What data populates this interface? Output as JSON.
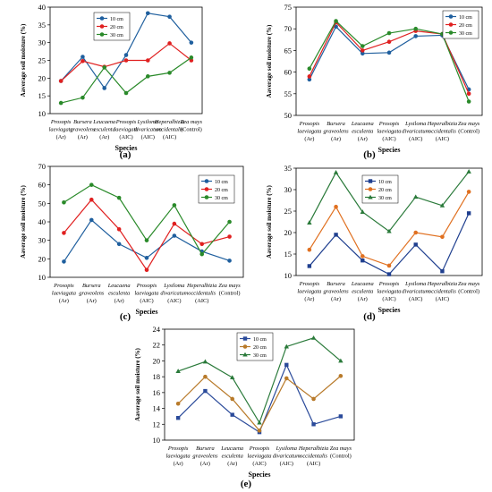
{
  "species": [
    [
      "Prosopis",
      "laeviagata",
      "(Ar)"
    ],
    [
      "Bursera",
      "graveolens",
      "(Ar)"
    ],
    [
      "Leucaena",
      "esculenta",
      "(Ar)"
    ],
    [
      "Prosopis",
      "laeviagata",
      "(AIC)"
    ],
    [
      "Lysiloma",
      "divaricatum",
      "(AIC)"
    ],
    [
      "Heperalbizia",
      "occidentalis",
      "(AIC)"
    ],
    [
      "Zea mays",
      "(Control)"
    ]
  ],
  "chart_data": [
    {
      "type": "line",
      "panel_label": "(a)",
      "xlabel": "Species",
      "ylabel": "Aaverage soil moisture (%)",
      "ylim": [
        10,
        40
      ],
      "yticks": [
        10,
        15,
        20,
        25,
        30,
        35,
        40
      ],
      "legend_position": "top-center",
      "series": [
        {
          "name": "10 cm",
          "color": "#1f5f9e",
          "marker": "circle",
          "values": [
            19.2,
            26.0,
            17.2,
            26.5,
            38.3,
            37.3,
            30.0
          ]
        },
        {
          "name": "20 cm",
          "color": "#e02020",
          "marker": "circle",
          "values": [
            19.2,
            24.8,
            23.2,
            25.0,
            25.0,
            29.8,
            25.0
          ]
        },
        {
          "name": "30 cm",
          "color": "#2a8a2a",
          "marker": "circle",
          "values": [
            13.0,
            14.5,
            23.0,
            15.8,
            20.5,
            21.5,
            25.8
          ]
        }
      ]
    },
    {
      "type": "line",
      "panel_label": "(b)",
      "xlabel": "Species",
      "ylabel": "Aaverage soil moisture (%)",
      "ylim": [
        50,
        75
      ],
      "yticks": [
        50,
        55,
        60,
        65,
        70,
        75
      ],
      "legend_position": "top-right",
      "series": [
        {
          "name": "10 cm",
          "color": "#1f5f9e",
          "marker": "circle",
          "values": [
            58.3,
            70.5,
            64.3,
            64.5,
            68.3,
            68.5,
            56.0
          ]
        },
        {
          "name": "20 cm",
          "color": "#e02020",
          "marker": "circle",
          "values": [
            59.0,
            71.5,
            65.0,
            67.0,
            69.5,
            68.8,
            55.0
          ]
        },
        {
          "name": "30 cm",
          "color": "#2a8a2a",
          "marker": "circle",
          "values": [
            60.8,
            71.8,
            66.0,
            69.0,
            70.0,
            68.8,
            53.2
          ]
        }
      ]
    },
    {
      "type": "line",
      "panel_label": "(c)",
      "xlabel": "Species",
      "ylabel": "Aaverage soil moisture (%)",
      "ylim": [
        10,
        70
      ],
      "yticks": [
        10,
        20,
        30,
        40,
        50,
        60,
        70
      ],
      "legend_position": "top-right",
      "series": [
        {
          "name": "10 cm",
          "color": "#1f5f9e",
          "marker": "circle",
          "values": [
            18.5,
            41.0,
            28.0,
            20.5,
            32.5,
            24.0,
            19.0
          ]
        },
        {
          "name": "20 cm",
          "color": "#e02020",
          "marker": "circle",
          "values": [
            34.0,
            52.0,
            36.0,
            14.0,
            39.0,
            28.0,
            32.0
          ]
        },
        {
          "name": "30 cm",
          "color": "#2a8a2a",
          "marker": "circle",
          "values": [
            50.5,
            60.0,
            53.0,
            30.0,
            49.0,
            22.5,
            40.0
          ]
        }
      ]
    },
    {
      "type": "line",
      "panel_label": "(d)",
      "xlabel": "Species",
      "ylabel": "Aaverage soil moisture (%)",
      "ylim": [
        10,
        35
      ],
      "yticks": [
        10,
        15,
        20,
        25,
        30,
        35
      ],
      "legend_position": "top-left",
      "series": [
        {
          "name": "10 cm",
          "color": "#1f3f8f",
          "marker": "square",
          "values": [
            12.2,
            19.5,
            13.5,
            10.3,
            17.2,
            11.0,
            24.5
          ]
        },
        {
          "name": "20 cm",
          "color": "#e07020",
          "marker": "circle",
          "values": [
            16.0,
            26.0,
            14.5,
            12.3,
            20.0,
            19.0,
            29.5
          ]
        },
        {
          "name": "30 cm",
          "color": "#2a7a3a",
          "marker": "triangle",
          "values": [
            22.3,
            34.0,
            24.8,
            20.3,
            28.3,
            26.3,
            34.2
          ]
        }
      ]
    },
    {
      "type": "line",
      "panel_label": "(e)",
      "xlabel": "Species",
      "ylabel": "Aaverage soil moisture (%)",
      "ylim": [
        10,
        24
      ],
      "yticks": [
        10,
        12,
        14,
        16,
        18,
        20,
        22,
        24
      ],
      "legend_position": "top-left",
      "series": [
        {
          "name": "10 cm",
          "color": "#2a4a9a",
          "marker": "square",
          "values": [
            12.8,
            16.2,
            13.2,
            11.0,
            19.5,
            12.0,
            13.0
          ]
        },
        {
          "name": "20 cm",
          "color": "#b87a2a",
          "marker": "circle",
          "values": [
            14.6,
            18.0,
            15.2,
            11.2,
            17.8,
            15.2,
            18.1
          ]
        },
        {
          "name": "30 cm",
          "color": "#2a7a3a",
          "marker": "triangle",
          "values": [
            18.7,
            19.9,
            17.9,
            12.2,
            21.8,
            22.9,
            20.0
          ]
        }
      ]
    }
  ]
}
